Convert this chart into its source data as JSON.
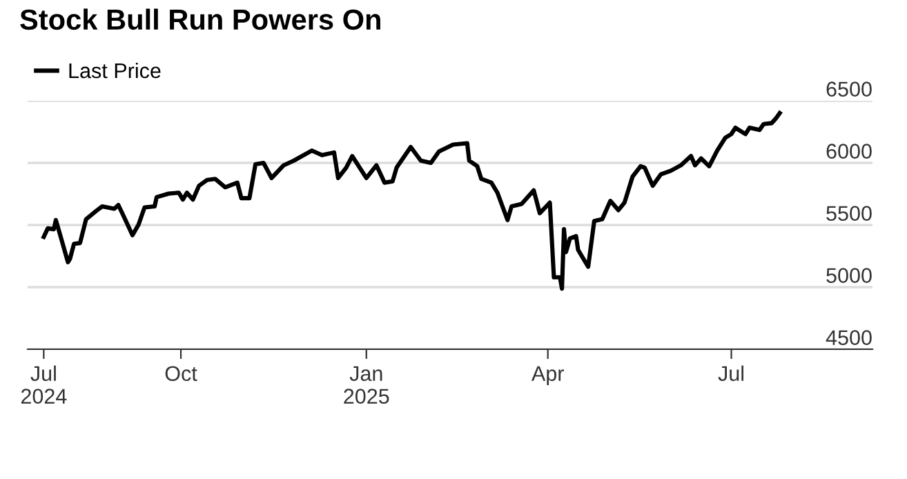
{
  "chart_data": {
    "type": "line",
    "title": "Stock Bull Run Powers On",
    "x": [
      "2024-07-25",
      "2024-07-27",
      "2024-07-30",
      "2024-07-31",
      "2024-08-02",
      "2024-08-06",
      "2024-08-07",
      "2024-08-09",
      "2024-08-12",
      "2024-08-15",
      "2024-08-20",
      "2024-08-23",
      "2024-08-29",
      "2024-08-31",
      "2024-09-03",
      "2024-09-07",
      "2024-09-10",
      "2024-09-13",
      "2024-09-18",
      "2024-09-19",
      "2024-09-25",
      "2024-09-30",
      "2024-10-02",
      "2024-10-04",
      "2024-10-07",
      "2024-10-10",
      "2024-10-14",
      "2024-10-18",
      "2024-10-23",
      "2024-10-29",
      "2024-10-31",
      "2024-11-04",
      "2024-11-07",
      "2024-11-11",
      "2024-11-15",
      "2024-11-21",
      "2024-11-26",
      "2024-12-05",
      "2024-12-10",
      "2024-12-16",
      "2024-12-18",
      "2024-12-22",
      "2024-12-25",
      "2025-01-01",
      "2025-01-06",
      "2025-01-10",
      "2025-01-14",
      "2025-01-16",
      "2025-01-23",
      "2025-01-28",
      "2025-02-02",
      "2025-02-06",
      "2025-02-13",
      "2025-02-20",
      "2025-02-21",
      "2025-02-25",
      "2025-02-27",
      "2025-03-04",
      "2025-03-07",
      "2025-03-12",
      "2025-03-14",
      "2025-03-19",
      "2025-03-25",
      "2025-03-28",
      "2025-04-02",
      "2025-04-04",
      "2025-04-07",
      "2025-04-08",
      "2025-04-09",
      "2025-04-10",
      "2025-04-12",
      "2025-04-15",
      "2025-04-16",
      "2025-04-21",
      "2025-04-24",
      "2025-04-28",
      "2025-05-02",
      "2025-05-06",
      "2025-05-09",
      "2025-05-13",
      "2025-05-17",
      "2025-05-19",
      "2025-05-23",
      "2025-05-27",
      "2025-06-01",
      "2025-06-06",
      "2025-06-11",
      "2025-06-13",
      "2025-06-16",
      "2025-06-20",
      "2025-06-24",
      "2025-06-28",
      "2025-07-01",
      "2025-07-03",
      "2025-07-08",
      "2025-07-10",
      "2025-07-15",
      "2025-07-17",
      "2025-07-21",
      "2025-07-23",
      "2025-07-25"
    ],
    "series": [
      {
        "name": "Last Price",
        "color": "#000000",
        "values": [
          5404,
          5473,
          5466,
          5540,
          5429,
          5201,
          5227,
          5349,
          5355,
          5547,
          5613,
          5650,
          5631,
          5661,
          5558,
          5418,
          5503,
          5642,
          5650,
          5724,
          5753,
          5760,
          5705,
          5760,
          5705,
          5816,
          5863,
          5871,
          5804,
          5841,
          5716,
          5716,
          5989,
          6000,
          5878,
          5981,
          6018,
          6099,
          6062,
          6084,
          5878,
          5962,
          6055,
          5878,
          5981,
          5841,
          5852,
          5962,
          6128,
          6018,
          6000,
          6092,
          6147,
          6158,
          6018,
          5973,
          5871,
          5841,
          5760,
          5540,
          5650,
          5669,
          5779,
          5595,
          5680,
          5079,
          5079,
          4988,
          5466,
          5282,
          5393,
          5410,
          5300,
          5164,
          5532,
          5547,
          5694,
          5620,
          5680,
          5889,
          5973,
          5962,
          5816,
          5907,
          5937,
          5981,
          6055,
          5981,
          6036,
          5973,
          6099,
          6202,
          6232,
          6283,
          6232,
          6283,
          6265,
          6312,
          6320,
          6356,
          6401
        ]
      }
    ],
    "xlim": [
      "2024-07-17",
      "2025-09-09"
    ],
    "xticks": [
      {
        "value": "2024-07-25",
        "label": "Jul\n2024"
      },
      {
        "value": "2024-10-01",
        "label": "Oct"
      },
      {
        "value": "2025-01-01",
        "label": "Jan\n2025"
      },
      {
        "value": "2025-04-01",
        "label": "Apr"
      },
      {
        "value": "2025-07-01",
        "label": "Jul"
      }
    ],
    "ylim": [
      4500,
      6500
    ],
    "yticks": [
      4500,
      5000,
      5500,
      6000,
      6500
    ],
    "grid": "y",
    "legend": "top left",
    "line_style": "solid",
    "marker": "none"
  }
}
